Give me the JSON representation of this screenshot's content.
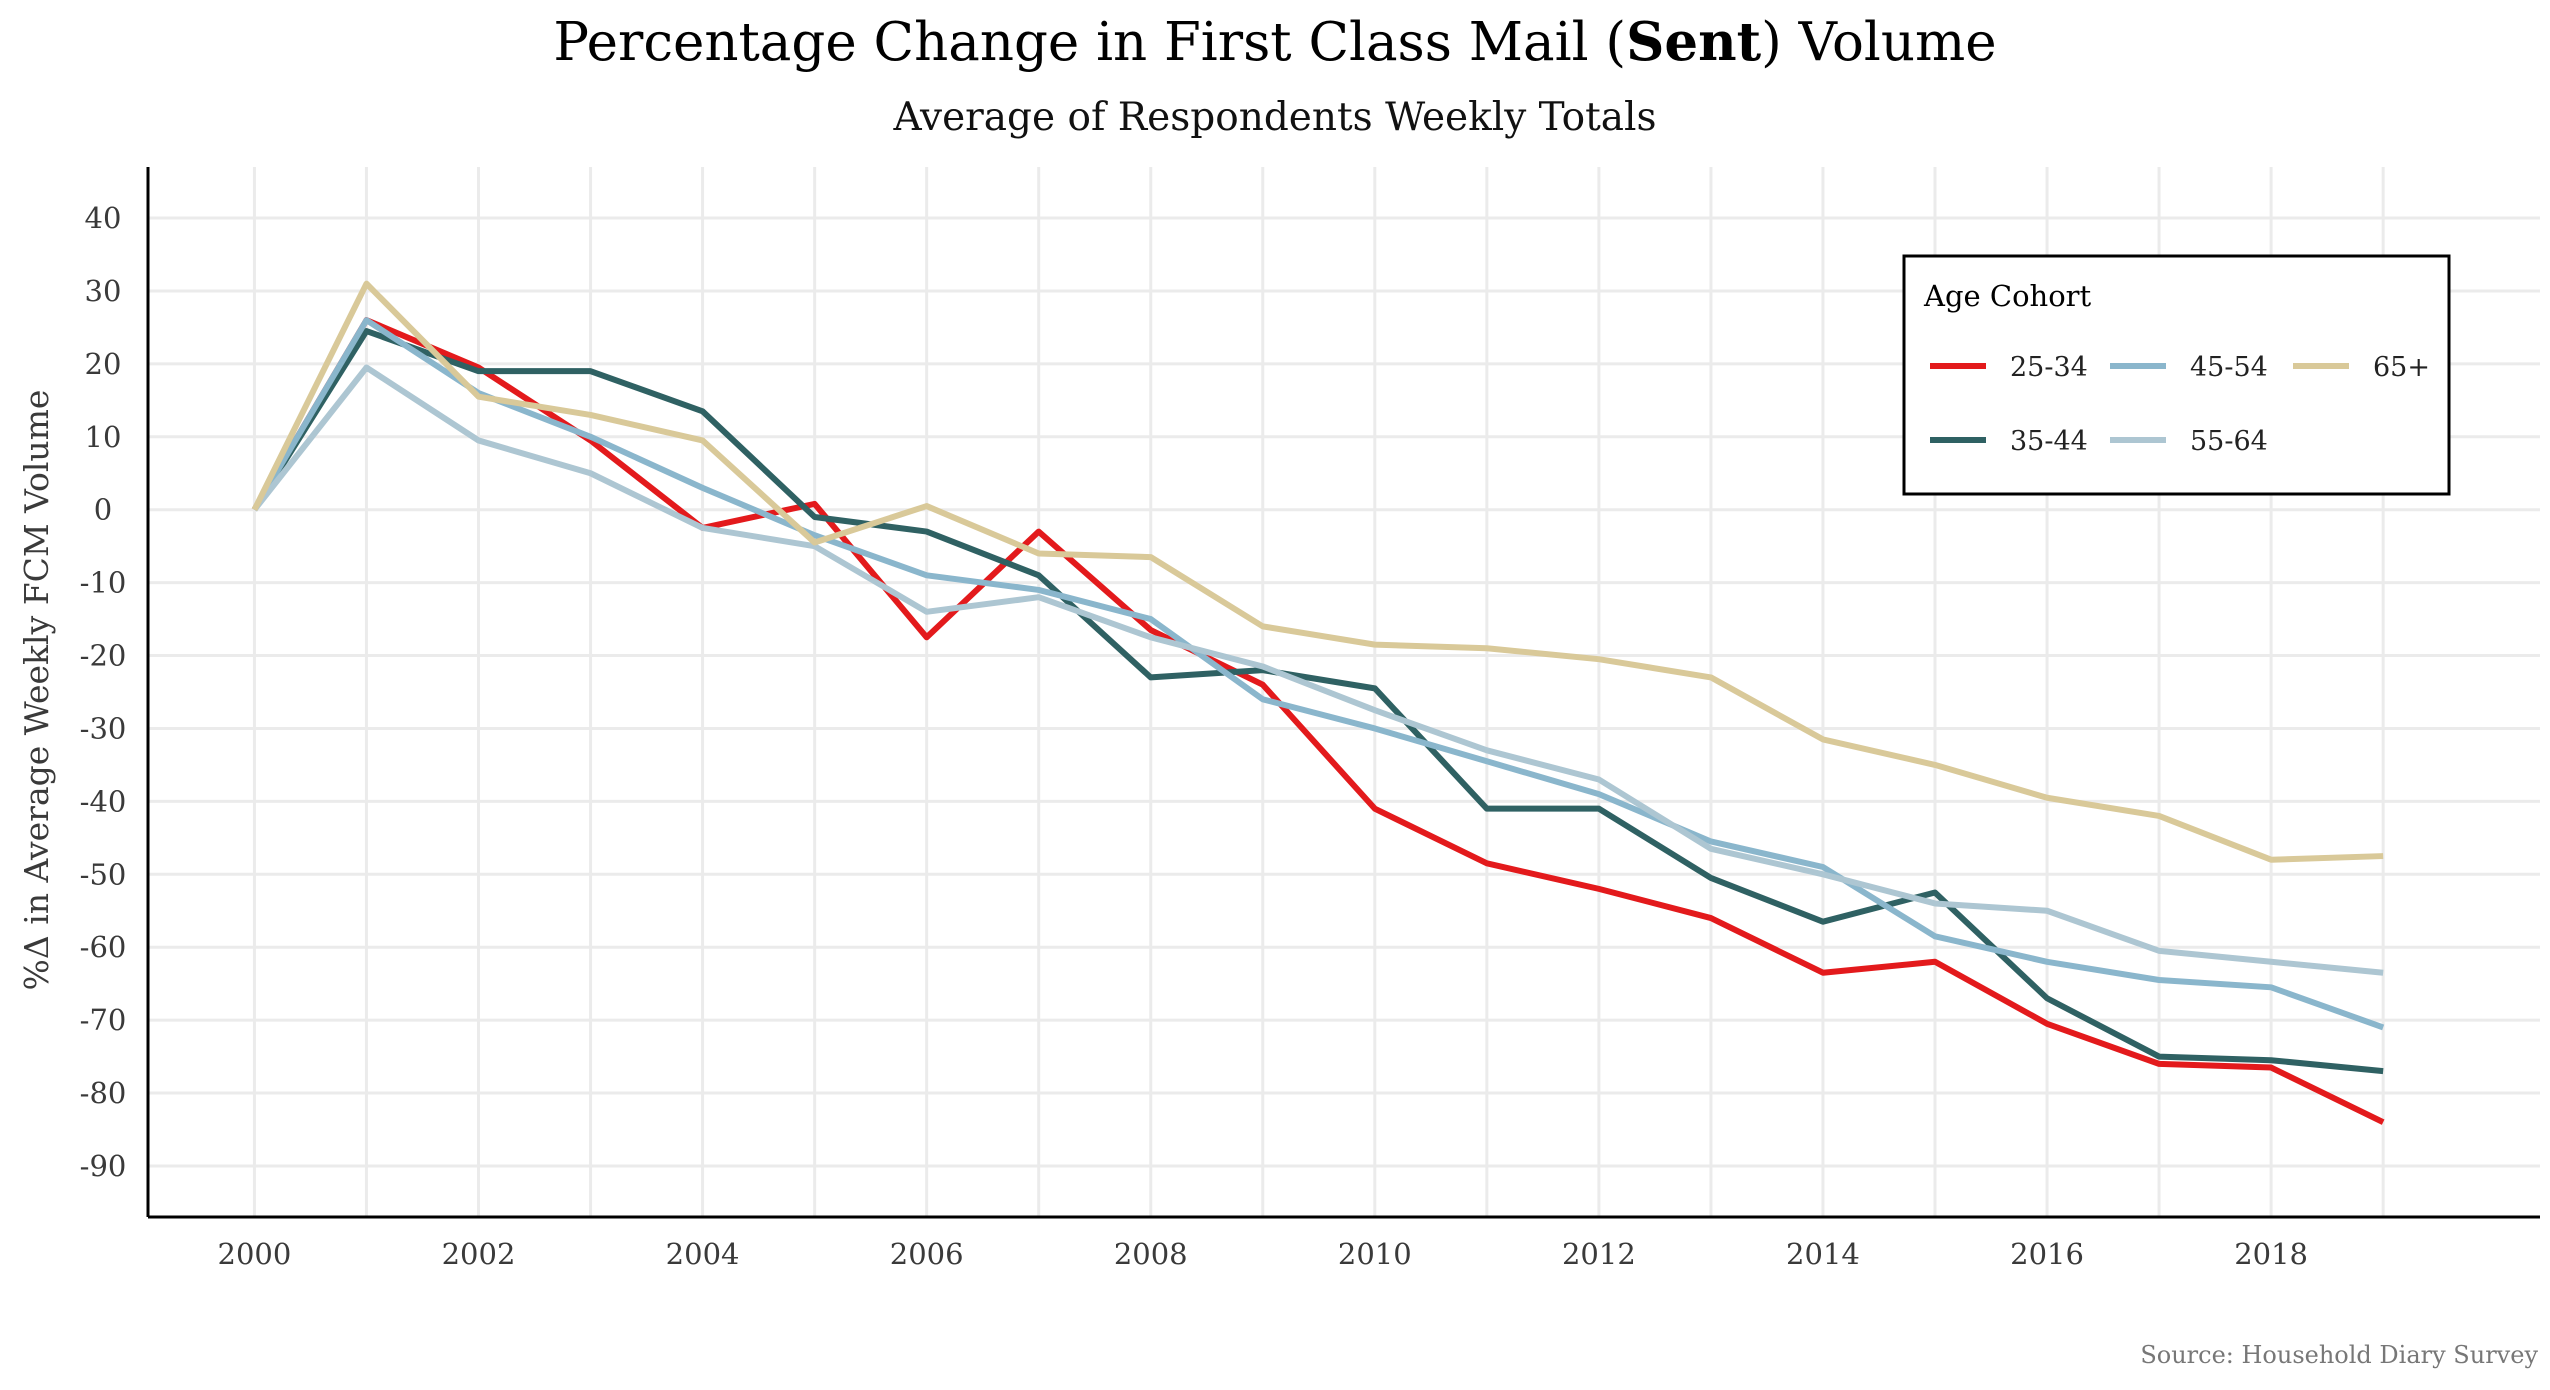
{
  "chart_data": {
    "type": "line",
    "title_prefix": "Percentage Change in First Class Mail (",
    "title_bold": "Sent",
    "title_suffix": ") Volume",
    "subtitle": "Average of Respondents Weekly Totals",
    "ylabel": "%Δ in Average Weekly FCM Volume",
    "xlabel": "",
    "caption": "Source: Household Diary Survey",
    "legend": {
      "title": "Age Cohort",
      "placement": "top-right"
    },
    "x": [
      2000,
      2001,
      2002,
      2003,
      2004,
      2005,
      2006,
      2007,
      2008,
      2009,
      2010,
      2011,
      2012,
      2013,
      2014,
      2015,
      2016,
      2017,
      2018,
      2019
    ],
    "xlim": [
      1999.05,
      2020.4
    ],
    "ylim": [
      -97,
      47
    ],
    "xticks": [
      2000,
      2002,
      2004,
      2006,
      2008,
      2010,
      2012,
      2014,
      2016,
      2018
    ],
    "yticks": [
      40,
      30,
      20,
      10,
      0,
      -10,
      -20,
      -30,
      -40,
      -50,
      -60,
      -70,
      -80,
      -90
    ],
    "grid": true,
    "series": [
      {
        "name": "25-34",
        "color": "#e31a1c",
        "values": [
          0,
          26,
          19.5,
          9.5,
          -2.5,
          0.8,
          -17.5,
          -3,
          -16.5,
          -24,
          -41,
          -48.5,
          -52,
          -56,
          -63.5,
          -62,
          -70.5,
          -76,
          -76.5,
          -84
        ]
      },
      {
        "name": "35-44",
        "color": "#2f6163",
        "values": [
          0,
          24.5,
          19,
          19,
          13.5,
          -1,
          -3,
          -9,
          -23,
          -22,
          -24.5,
          -41,
          -41,
          -50.5,
          -56.5,
          -52.5,
          -67,
          -75,
          -75.5,
          -77
        ]
      },
      {
        "name": "45-54",
        "color": "#8ab6cc",
        "values": [
          0,
          26,
          16,
          10,
          3,
          -3.5,
          -9,
          -11,
          -15,
          -26,
          -30,
          -34.5,
          -39,
          -45.5,
          -49,
          -58.5,
          -62,
          -64.5,
          -65.5,
          -71
        ]
      },
      {
        "name": "55-64",
        "color": "#adc6d2",
        "values": [
          0,
          19.5,
          9.5,
          5,
          -2.5,
          -5,
          -14,
          -12,
          -17.5,
          -21.5,
          -27.5,
          -33,
          -37,
          -46.5,
          -50,
          -54,
          -55,
          -60.5,
          -62,
          -63.5
        ]
      },
      {
        "name": "65+",
        "color": "#d9c999",
        "values": [
          0,
          31,
          15.5,
          13,
          9.5,
          -4.5,
          0.5,
          -6,
          -6.5,
          -16,
          -18.5,
          -19,
          -20.5,
          -23,
          -31.5,
          -35,
          -39.5,
          -42,
          -48,
          -47.5
        ]
      }
    ]
  }
}
